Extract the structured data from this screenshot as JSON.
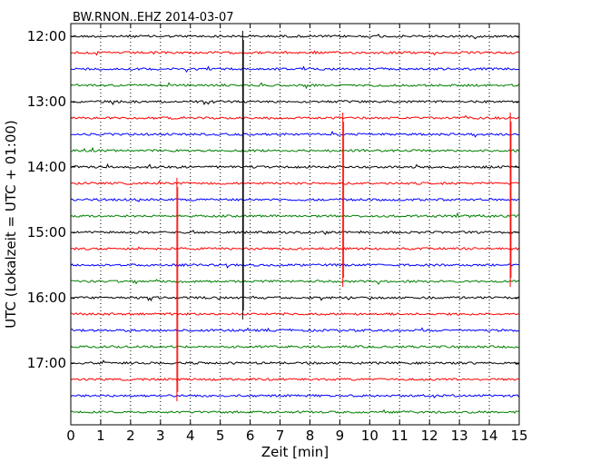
{
  "chart_data": {
    "type": "line",
    "title": "BW.RNON..EHZ 2014-03-07",
    "xlabel": "Zeit  [min]",
    "ylabel": "UTC (Lokalzeit = UTC + 01:00)",
    "xlim": [
      0,
      15
    ],
    "x_ticks": [
      "0",
      "1",
      "2",
      "3",
      "4",
      "5",
      "6",
      "7",
      "8",
      "9",
      "10",
      "11",
      "12",
      "13",
      "14",
      "15"
    ],
    "y_tick_labels": [
      "12:00",
      "13:00",
      "14:00",
      "15:00",
      "16:00",
      "17:00"
    ],
    "trace_colors": [
      "#000000",
      "#ff0000",
      "#0000ff",
      "#008000"
    ],
    "grid": "vertical dotted",
    "traces_start": "12:00",
    "traces_end": "17:45",
    "trace_interval_minutes": 15,
    "events": [
      {
        "x": 5.75,
        "from": "12:00",
        "to": "16:15"
      },
      {
        "x": 9.1,
        "from": "13:15",
        "to": "15:45"
      },
      {
        "x": 14.7,
        "from": "13:15",
        "to": "15:45"
      },
      {
        "x": 3.55,
        "from": "14:15",
        "to": "17:30"
      }
    ]
  }
}
